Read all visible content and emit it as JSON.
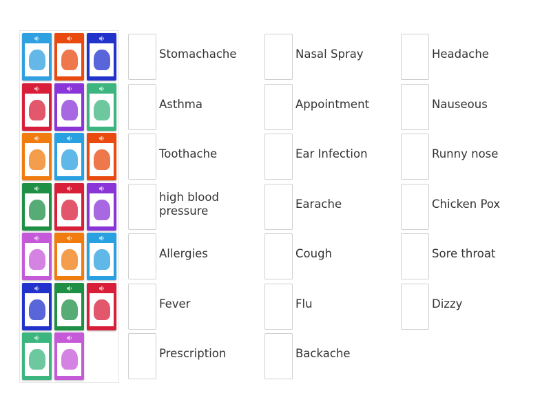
{
  "cards": [
    {
      "color": "#2fa0e0",
      "icon": "stomachache-picture"
    },
    {
      "color": "#e84a10",
      "icon": "sick-man-picture"
    },
    {
      "color": "#2233cc",
      "icon": "sick-person-picture"
    },
    {
      "color": "#d81f3a",
      "icon": "stomach-pain-girl-picture"
    },
    {
      "color": "#8a35d8",
      "icon": "symptoms-chart-picture"
    },
    {
      "color": "#3cb57f",
      "icon": "backache-silhouette-picture"
    },
    {
      "color": "#f07c10",
      "icon": "sore-throat-picture"
    },
    {
      "color": "#29a0e0",
      "icon": "boy-pointing-picture"
    },
    {
      "color": "#e84a10",
      "icon": "prescription-picture"
    },
    {
      "color": "#1f8f45",
      "icon": "boy-with-cap-picture"
    },
    {
      "color": "#d81f3a",
      "icon": "runny-nose-picture"
    },
    {
      "color": "#8a35d8",
      "icon": "dizzy-woman-picture"
    },
    {
      "color": "#c55ad8",
      "icon": "cough-boy-picture"
    },
    {
      "color": "#f07c10",
      "icon": "boy-with-scarf-picture"
    },
    {
      "color": "#29a0e0",
      "icon": "old-man-toothache-picture"
    },
    {
      "color": "#2233cc",
      "icon": "earache-girl-picture"
    },
    {
      "color": "#1f8f45",
      "icon": "old-man-blood-pressure-picture"
    },
    {
      "color": "#d81f3a",
      "icon": "doctor-appointment-picture"
    },
    {
      "color": "#3cb57f",
      "icon": "chicken-pox-girl-picture"
    },
    {
      "color": "#c55ad8",
      "icon": "allergies-boy-picture"
    }
  ],
  "columns": [
    [
      "Stomachache",
      "Asthma",
      "Toothache",
      "high blood pressure",
      "Allergies",
      "Fever",
      "Prescription"
    ],
    [
      "Nasal Spray",
      "Appointment",
      "Ear Infection",
      "Earache",
      "Cough",
      "Flu",
      "Backache"
    ],
    [
      "Headache",
      "Nauseous",
      "Runny nose",
      "Chicken Pox",
      "Sore throat",
      "Dizzy"
    ]
  ]
}
